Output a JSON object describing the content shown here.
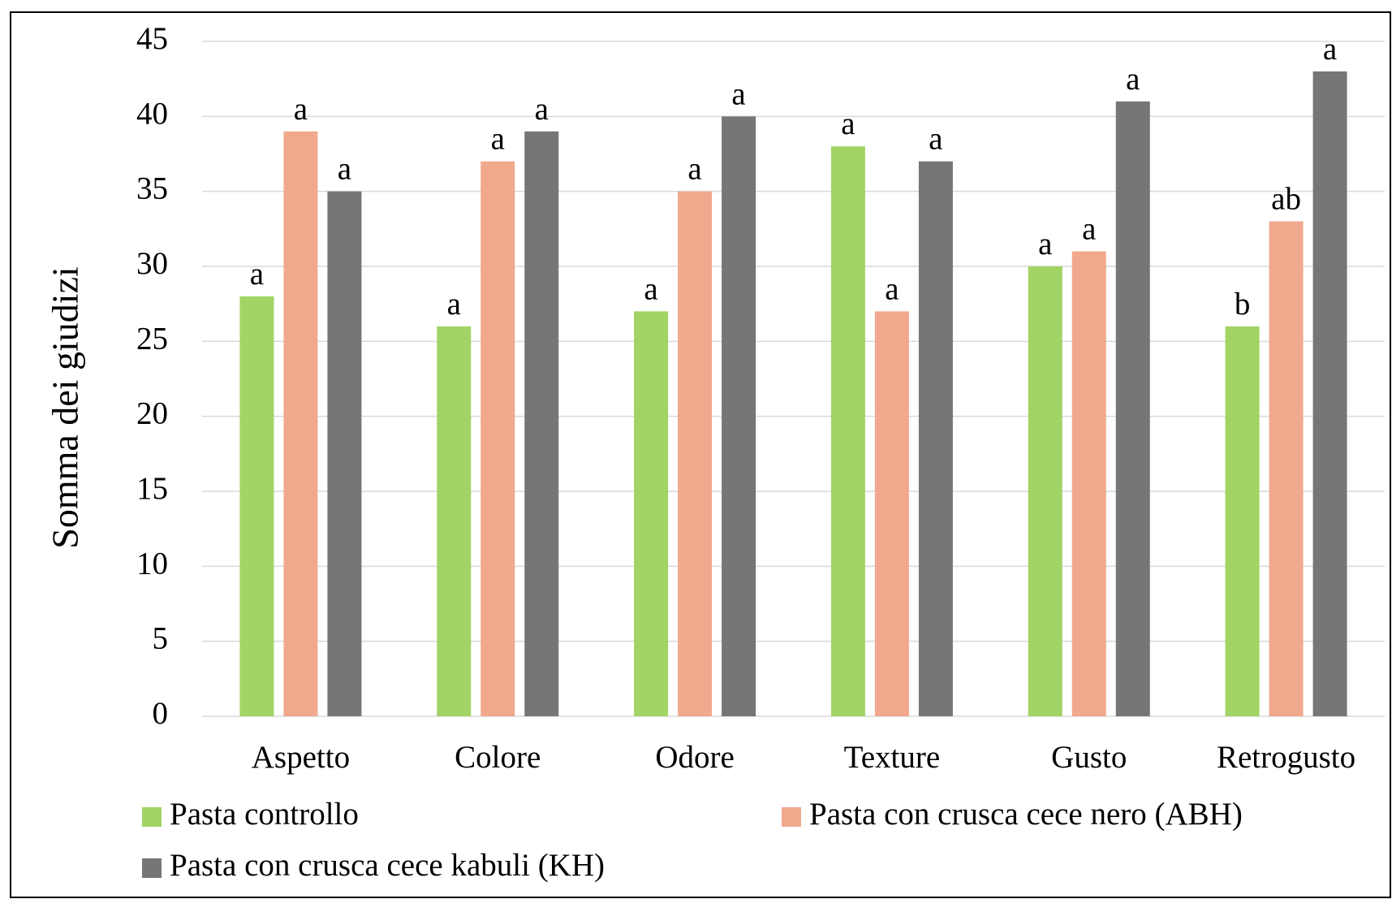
{
  "chart_data": {
    "type": "bar",
    "y_label": "Somma dei giudizi",
    "categories": [
      "Aspetto",
      "Colore",
      "Odore",
      "Texture",
      "Gusto",
      "Retrogusto"
    ],
    "series": [
      {
        "name": "Pasta controllo",
        "color": "#a2d365",
        "values": [
          28,
          26,
          27,
          38,
          30,
          26
        ],
        "letters": [
          "a",
          "a",
          "a",
          "a",
          "a",
          "b"
        ]
      },
      {
        "name": "Pasta con crusca cece nero (ABH)",
        "color": "#f1a98e",
        "values": [
          39,
          37,
          35,
          27,
          31,
          33
        ],
        "letters": [
          "a",
          "a",
          "a",
          "a",
          "a",
          "ab"
        ]
      },
      {
        "name": "Pasta con crusca cece kabuli (KH)",
        "color": "#767676",
        "values": [
          35,
          39,
          40,
          37,
          41,
          43
        ],
        "letters": [
          "a",
          "a",
          "a",
          "a",
          "a",
          "a"
        ]
      }
    ],
    "ylim": [
      0,
      45
    ],
    "yticks": [
      0,
      5,
      10,
      15,
      20,
      25,
      30,
      35,
      40,
      45
    ],
    "grid": true
  }
}
